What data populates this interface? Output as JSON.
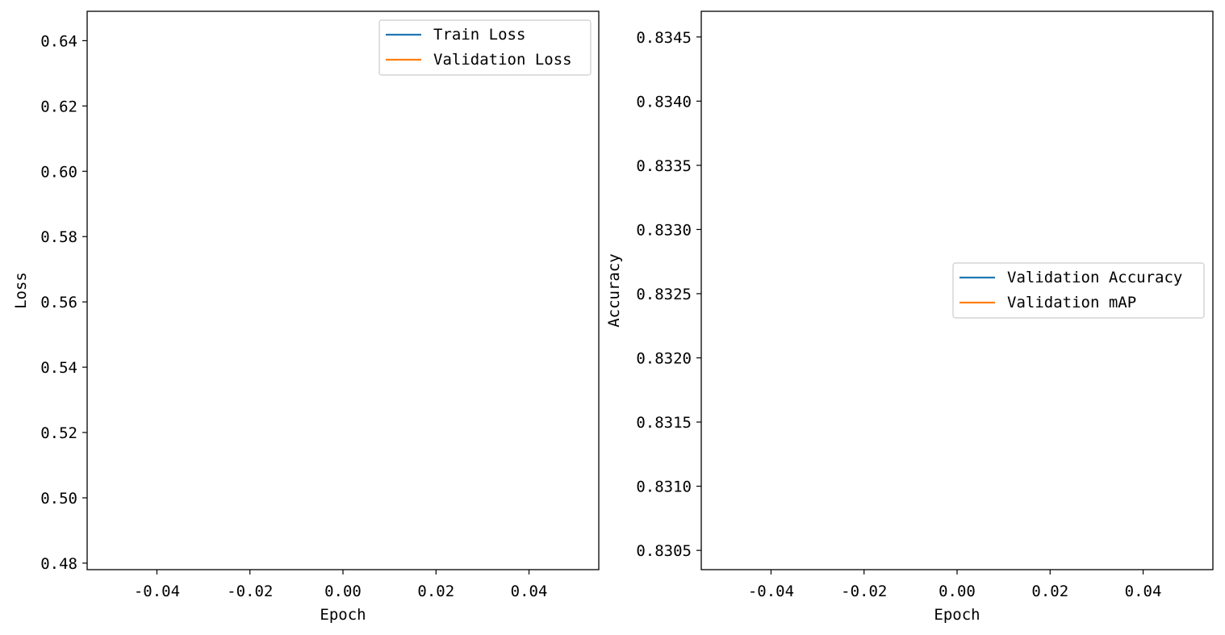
{
  "chart_data": [
    {
      "type": "line",
      "title": "",
      "xlabel": "Epoch",
      "ylabel": "Loss",
      "xlim": [
        -0.055,
        0.055
      ],
      "ylim": [
        0.478,
        0.649
      ],
      "xticks": [
        "-0.04",
        "-0.02",
        "0.00",
        "0.02",
        "0.04"
      ],
      "xtick_values": [
        -0.04,
        -0.02,
        0.0,
        0.02,
        0.04
      ],
      "yticks": [
        "0.48",
        "0.50",
        "0.52",
        "0.54",
        "0.56",
        "0.58",
        "0.60",
        "0.62",
        "0.64"
      ],
      "ytick_values": [
        0.48,
        0.5,
        0.52,
        0.54,
        0.56,
        0.58,
        0.6,
        0.62,
        0.64
      ],
      "legend_position": "top-right",
      "grid": false,
      "series": [
        {
          "name": "Train Loss",
          "color": "#1f77b4",
          "x": [],
          "y": []
        },
        {
          "name": "Validation Loss",
          "color": "#ff7f0e",
          "x": [],
          "y": []
        }
      ]
    },
    {
      "type": "line",
      "title": "",
      "xlabel": "Epoch",
      "ylabel": "Accuracy",
      "xlim": [
        -0.055,
        0.055
      ],
      "ylim": [
        0.83035,
        0.8347
      ],
      "xticks": [
        "-0.04",
        "-0.02",
        "0.00",
        "0.02",
        "0.04"
      ],
      "xtick_values": [
        -0.04,
        -0.02,
        0.0,
        0.02,
        0.04
      ],
      "yticks": [
        "0.8305",
        "0.8310",
        "0.8315",
        "0.8320",
        "0.8325",
        "0.8330",
        "0.8335",
        "0.8340",
        "0.8345"
      ],
      "ytick_values": [
        0.8305,
        0.831,
        0.8315,
        0.832,
        0.8325,
        0.833,
        0.8335,
        0.834,
        0.8345
      ],
      "legend_position": "center-right",
      "grid": false,
      "series": [
        {
          "name": "Validation Accuracy",
          "color": "#1f77b4",
          "x": [],
          "y": []
        },
        {
          "name": "Validation mAP",
          "color": "#ff7f0e",
          "x": [],
          "y": []
        }
      ]
    }
  ]
}
